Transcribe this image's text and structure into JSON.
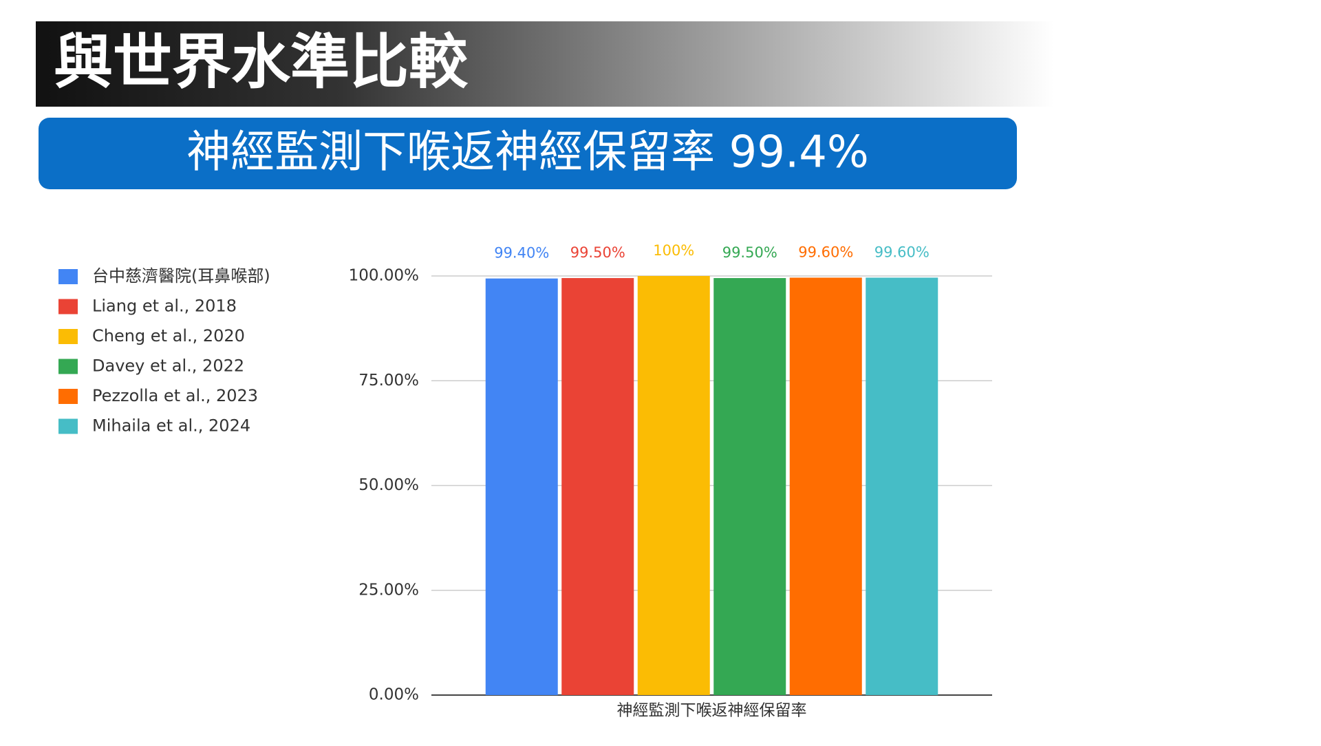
{
  "header": {
    "title": "與世界水準比較",
    "banner": "神經監測下喉返神經保留率 99.4%"
  },
  "chart_data": {
    "type": "bar",
    "categories": [
      "神經監測下喉返神經保留率"
    ],
    "series": [
      {
        "name": "台中慈濟醫院(耳鼻喉部)",
        "color": "#4285f4",
        "values": [
          99.4
        ],
        "value_labels": [
          "99.40%"
        ]
      },
      {
        "name": "Liang et al., 2018",
        "color": "#ea4335",
        "values": [
          99.5
        ],
        "value_labels": [
          "99.50%"
        ]
      },
      {
        "name": "Cheng et al., 2020",
        "color": "#fbbc04",
        "values": [
          100
        ],
        "value_labels": [
          "100%"
        ]
      },
      {
        "name": "Davey et al., 2022",
        "color": "#34a853",
        "values": [
          99.5
        ],
        "value_labels": [
          "99.50%"
        ]
      },
      {
        "name": "Pezzolla et al., 2023",
        "color": "#ff6d01",
        "values": [
          99.6
        ],
        "value_labels": [
          "99.60%"
        ]
      },
      {
        "name": "Mihaila et al., 2024",
        "color": "#46bdc6",
        "values": [
          99.6
        ],
        "value_labels": [
          "99.60%"
        ]
      }
    ],
    "ylim": [
      0,
      100
    ],
    "yticks": [
      {
        "value": 0,
        "label": "0.00%"
      },
      {
        "value": 25,
        "label": "25.00%"
      },
      {
        "value": 50,
        "label": "50.00%"
      },
      {
        "value": 75,
        "label": "75.00%"
      },
      {
        "value": 100,
        "label": "100.00%"
      }
    ],
    "grid": true,
    "legend": "left"
  }
}
